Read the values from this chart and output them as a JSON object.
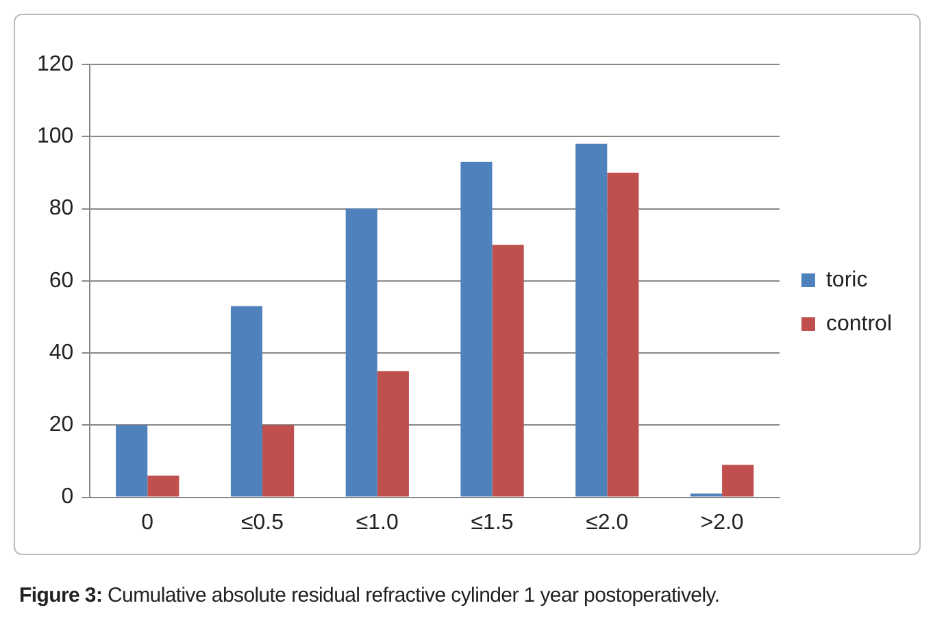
{
  "chart_data": {
    "type": "bar",
    "categories": [
      "0",
      "≤0.5",
      "≤1.0",
      "≤1.5",
      "≤2.0",
      ">2.0"
    ],
    "series": [
      {
        "name": "toric",
        "color": "#4f81bd",
        "values": [
          20,
          53,
          80,
          93,
          98,
          1
        ]
      },
      {
        "name": "control",
        "color": "#c0504d",
        "values": [
          6,
          20,
          35,
          70,
          90,
          9
        ]
      }
    ],
    "ylim": [
      0,
      120
    ],
    "yticks": [
      0,
      20,
      40,
      60,
      80,
      100,
      120
    ],
    "grid": "y",
    "legend": "right",
    "annotations": [
      "Figure 3: Cumulative absolute residual refractive cylinder 1 year postoperatively."
    ]
  }
}
